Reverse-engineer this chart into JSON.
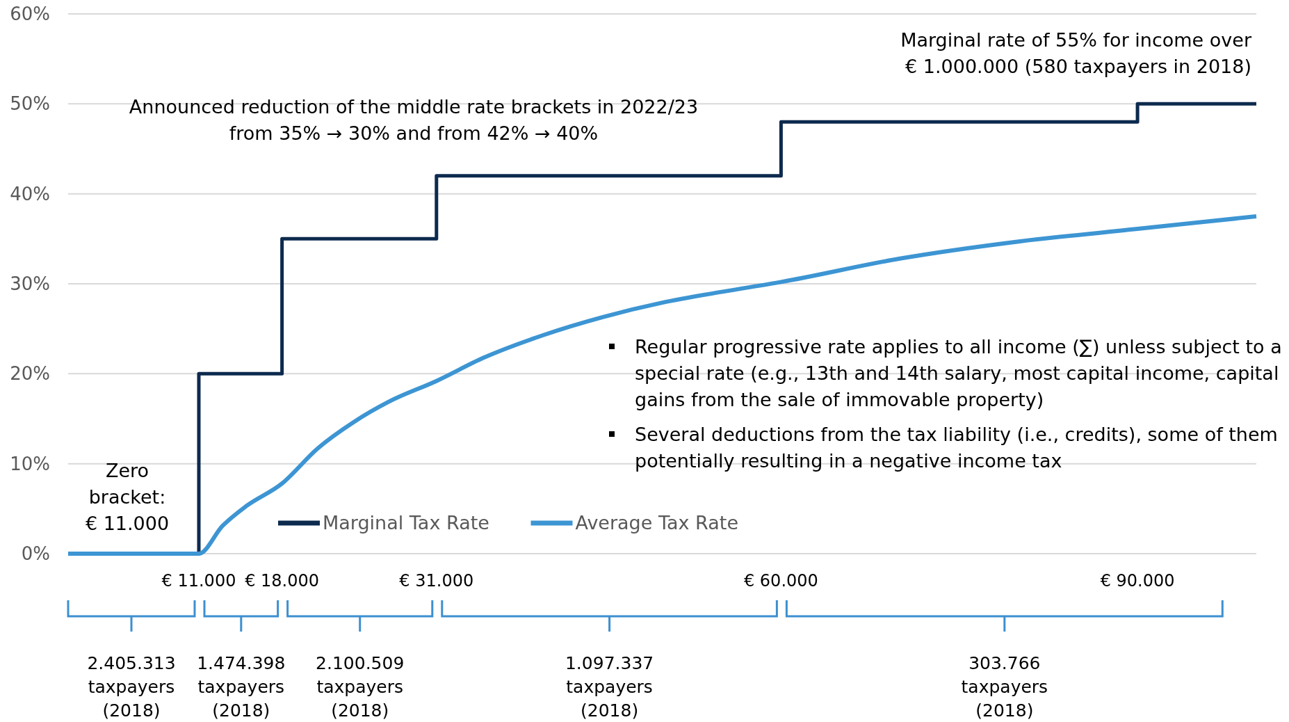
{
  "chart_data": {
    "type": "line",
    "xlim": [
      0,
      100000
    ],
    "ylim": [
      0,
      60
    ],
    "xticks": [
      {
        "value": 11000,
        "label": "€ 11.000"
      },
      {
        "value": 18000,
        "label": "€ 18.000"
      },
      {
        "value": 31000,
        "label": "€ 31.000"
      },
      {
        "value": 60000,
        "label": "€ 60.000"
      },
      {
        "value": 90000,
        "label": "€ 90.000"
      }
    ],
    "yticks": [
      {
        "value": 0,
        "label": "0%"
      },
      {
        "value": 10,
        "label": "10%"
      },
      {
        "value": 20,
        "label": "20%"
      },
      {
        "value": 30,
        "label": "30%"
      },
      {
        "value": 40,
        "label": "40%"
      },
      {
        "value": 50,
        "label": "50%"
      },
      {
        "value": 60,
        "label": "60%"
      }
    ],
    "grid": "y",
    "legend": "bottom",
    "line_style": "solid",
    "marker": "none",
    "series": [
      {
        "name": "Marginal Tax Rate",
        "type": "step",
        "color": "#0d2a4e",
        "x": [
          0,
          11000,
          18000,
          31000,
          60000,
          90000,
          100000
        ],
        "values": [
          0,
          20,
          35,
          42,
          48,
          50,
          50
        ]
      },
      {
        "name": "Average Tax Rate",
        "color": "#3d95d3",
        "x": [
          0,
          11000,
          13000,
          15000,
          18000,
          21000,
          24000,
          27000,
          31000,
          35000,
          40000,
          45000,
          50000,
          55000,
          60000,
          70000,
          80000,
          90000,
          100000
        ],
        "values": [
          0,
          0,
          3.1,
          5.3,
          7.8,
          11.7,
          14.6,
          16.9,
          19.2,
          21.8,
          24.3,
          26.3,
          27.9,
          29.1,
          30.2,
          32.8,
          34.7,
          36.1,
          37.5
        ]
      }
    ],
    "annotations": [
      "Announced reduction of the middle rate brackets in 2022/23\nfrom 35% → 30% and from 42% → 40%",
      "Marginal rate of 55% for income over\n€ 1.000.000 (580 taxpayers in 2018)",
      "Zero\nbracket:\n€ 11.000",
      "Regular progressive rate applies to all income (∑) unless subject to a\nspecial rate (e.g., 13th and 14th salary, most capital income, capital\ngains from the sale of immovable property)",
      "Several deductions from the tax liability (i.e., credits), some of them\npotentially resulting in a negative income tax",
      "2.405.313\ntaxpayers\n(2018)",
      "1.474.398\ntaxpayers\n(2018)",
      "2.100.509\ntaxpayers\n(2018)",
      "1.097.337\ntaxpayers\n(2018)",
      "303.766\ntaxpayers\n(2018)"
    ]
  }
}
